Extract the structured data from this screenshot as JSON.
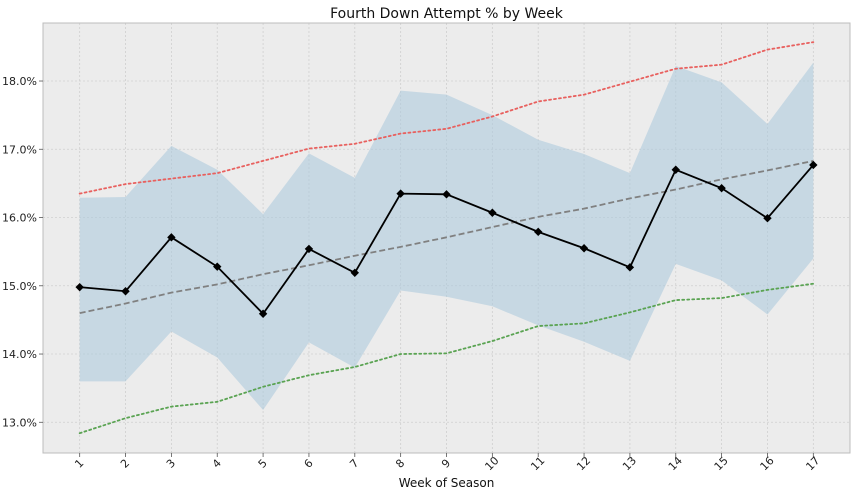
{
  "chart_data": {
    "type": "line",
    "title": "Fourth Down Attempt % by Week",
    "xlabel": "Week of Season",
    "ylabel": "",
    "x": [
      1,
      2,
      3,
      4,
      5,
      6,
      7,
      8,
      9,
      10,
      11,
      12,
      13,
      14,
      15,
      16,
      17
    ],
    "x_tick_labels": [
      "1",
      "2",
      "3",
      "4",
      "5",
      "6",
      "7",
      "8",
      "9",
      "10",
      "11",
      "12",
      "13",
      "14",
      "15",
      "16",
      "17"
    ],
    "y_ticks": [
      13.0,
      14.0,
      15.0,
      16.0,
      17.0,
      18.0
    ],
    "y_tick_labels": [
      "13.0%",
      "14.0%",
      "15.0%",
      "16.0%",
      "17.0%",
      "18.0%"
    ],
    "xlim": [
      0.2,
      17.8
    ],
    "ylim": [
      12.55,
      18.85
    ],
    "grid": true,
    "background": "#ececec",
    "series": [
      {
        "key": "actual",
        "style": "solid-diamond",
        "color": "#000000",
        "values": [
          14.98,
          14.92,
          15.71,
          15.28,
          14.59,
          15.54,
          15.19,
          16.35,
          16.34,
          16.07,
          15.79,
          15.55,
          15.27,
          16.7,
          16.43,
          15.99,
          16.77
        ]
      },
      {
        "key": "band",
        "style": "band",
        "color": "#a9c9dc",
        "lower": [
          13.6,
          13.6,
          14.33,
          13.95,
          13.18,
          14.17,
          13.8,
          14.93,
          14.84,
          14.7,
          14.42,
          14.18,
          13.9,
          15.32,
          15.08,
          14.58,
          15.4
        ],
        "upper": [
          16.29,
          16.3,
          17.05,
          16.7,
          16.05,
          16.94,
          16.58,
          17.86,
          17.8,
          17.5,
          17.14,
          16.93,
          16.65,
          18.22,
          17.98,
          17.37,
          18.27
        ]
      },
      {
        "key": "trend",
        "style": "dashed",
        "color": "#808080",
        "values": [
          14.6,
          14.74,
          14.9,
          15.02,
          15.17,
          15.3,
          15.44,
          15.57,
          15.71,
          15.86,
          16.01,
          16.13,
          16.28,
          16.41,
          16.56,
          16.69,
          16.83
        ]
      },
      {
        "key": "upper_bound",
        "style": "dotted",
        "color": "#e8605e",
        "values": [
          16.35,
          16.49,
          16.57,
          16.65,
          16.83,
          17.01,
          17.08,
          17.23,
          17.3,
          17.48,
          17.7,
          17.8,
          17.99,
          18.18,
          18.24,
          18.46,
          18.57
        ]
      },
      {
        "key": "lower_bound",
        "style": "dotted",
        "color": "#5aa352",
        "values": [
          12.84,
          13.06,
          13.23,
          13.3,
          13.52,
          13.69,
          13.81,
          14.0,
          14.01,
          14.19,
          14.41,
          14.45,
          14.61,
          14.79,
          14.82,
          14.94,
          15.03
        ]
      }
    ]
  }
}
